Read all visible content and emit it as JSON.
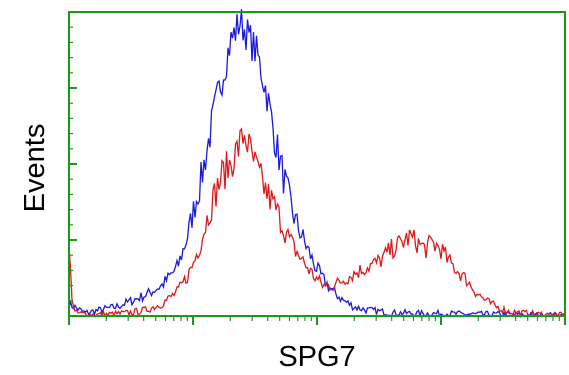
{
  "chart_data": {
    "type": "line",
    "xlabel": "SPG7",
    "ylabel": "Events",
    "xscale": "log",
    "xlim": [
      1,
      10000
    ],
    "ylim": [
      0,
      100
    ],
    "grid": false,
    "frame_color": "#1a9a1a",
    "series": [
      {
        "color": "#1a1adc",
        "x": [
          1.0,
          1.35,
          1.8,
          2.4,
          3.2,
          4.2,
          5.6,
          7.5,
          9.0,
          10.0,
          11.5,
          13.0,
          15.0,
          17.0,
          20.0,
          24.0,
          28.0,
          33.0,
          39.0,
          46.0,
          55.0,
          66.0,
          80.0,
          95.0,
          112.0,
          135.0,
          165.0,
          200.0,
          250.0,
          320.0,
          400.0,
          500.0,
          650.0,
          850.0,
          1100.0,
          1500.0,
          2000.0,
          2800.0,
          4000.0,
          6000.0,
          10000.0
        ],
        "values": [
          4,
          1,
          2,
          3,
          5,
          7,
          10,
          16,
          26,
          34,
          44,
          55,
          68,
          78,
          90,
          97,
          92,
          86,
          74,
          58,
          44,
          32,
          24,
          17,
          12,
          8,
          5,
          3,
          2,
          1.5,
          1,
          1,
          0.8,
          0.8,
          0.8,
          0.6,
          0.5,
          0.5,
          0.4,
          0.3,
          0.2
        ]
      },
      {
        "color": "#dc1a1a",
        "x": [
          1.0,
          1.06,
          1.12,
          1.4,
          2.0,
          3.0,
          4.2,
          5.6,
          7.5,
          9.0,
          10.0,
          11.5,
          13.0,
          15.0,
          17.0,
          20.0,
          23.0,
          26.0,
          30.0,
          35.0,
          40.0,
          47.0,
          55.0,
          66.0,
          80.0,
          95.0,
          112.0,
          135.0,
          165.0,
          200.0,
          250.0,
          320.0,
          400.0,
          480.0,
          560.0,
          650.0,
          750.0,
          850.0,
          1000.0,
          1150.0,
          1350.0,
          1600.0,
          1900.0,
          2300.0,
          2800.0,
          3500.0,
          4500.0,
          6000.0,
          8000.0,
          10000.0
        ],
        "values": [
          22,
          6,
          1,
          0.5,
          0.5,
          1,
          2,
          4,
          8,
          13,
          17,
          24,
          32,
          40,
          46,
          50,
          55,
          60,
          52,
          45,
          40,
          35,
          28,
          22,
          17,
          13,
          10,
          10,
          12,
          14,
          16,
          18,
          22,
          24,
          26,
          24,
          22,
          24,
          22,
          18,
          15,
          12,
          8,
          5,
          3,
          1.5,
          1,
          0.5,
          0.3,
          0.2
        ]
      }
    ]
  }
}
